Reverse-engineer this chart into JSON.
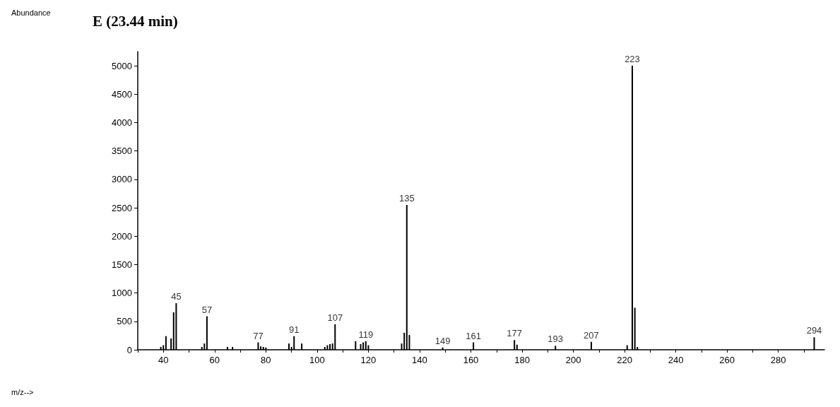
{
  "chart_data": {
    "type": "bar",
    "title": "E (23.44 min)",
    "annotations": [
      "Abundance",
      "m/z-->",
      {
        "text": "45",
        "x": 45,
        "y": 820
      },
      {
        "text": "57",
        "x": 57,
        "y": 590
      },
      {
        "text": "77",
        "x": 77,
        "y": 130
      },
      {
        "text": "91",
        "x": 91,
        "y": 240
      },
      {
        "text": "107",
        "x": 107,
        "y": 450
      },
      {
        "text": "119",
        "x": 119,
        "y": 150
      },
      {
        "text": "135",
        "x": 135,
        "y": 2550
      },
      {
        "text": "149",
        "x": 149,
        "y": 40
      },
      {
        "text": "161",
        "x": 161,
        "y": 130
      },
      {
        "text": "177",
        "x": 177,
        "y": 170
      },
      {
        "text": "193",
        "x": 193,
        "y": 70
      },
      {
        "text": "207",
        "x": 207,
        "y": 140
      },
      {
        "text": "223",
        "x": 223,
        "y": 5000
      },
      {
        "text": "294",
        "x": 294,
        "y": 220
      }
    ],
    "x": [
      39,
      40,
      41,
      43,
      44,
      45,
      55,
      56,
      57,
      65,
      67,
      77,
      78,
      79,
      80,
      89,
      90,
      91,
      94,
      103,
      104,
      105,
      106,
      107,
      115,
      117,
      118,
      119,
      120,
      133,
      134,
      135,
      136,
      149,
      161,
      177,
      178,
      193,
      207,
      221,
      223,
      224,
      225,
      294
    ],
    "values": [
      50,
      80,
      240,
      200,
      660,
      820,
      50,
      110,
      590,
      50,
      50,
      130,
      60,
      50,
      40,
      110,
      50,
      240,
      110,
      50,
      80,
      100,
      110,
      450,
      150,
      100,
      130,
      150,
      80,
      110,
      300,
      2550,
      260,
      40,
      130,
      170,
      90,
      70,
      140,
      80,
      5000,
      740,
      50,
      220
    ],
    "color": "#000000",
    "xlim": [
      30,
      298
    ],
    "xticks": [
      {
        "value": 30,
        "label": null
      },
      40,
      {
        "value": 50,
        "label": null
      },
      60,
      {
        "value": 70,
        "label": null
      },
      80,
      {
        "value": 90,
        "label": null
      },
      100,
      {
        "value": 110,
        "label": null
      },
      120,
      {
        "value": 130,
        "label": null
      },
      140,
      {
        "value": 150,
        "label": null
      },
      160,
      {
        "value": 170,
        "label": null
      },
      180,
      {
        "value": 190,
        "label": null
      },
      200,
      {
        "value": 210,
        "label": null
      },
      220,
      {
        "value": 230,
        "label": null
      },
      240,
      {
        "value": 250,
        "label": null
      },
      260,
      {
        "value": 270,
        "label": null
      },
      280,
      {
        "value": 290,
        "label": null
      }
    ],
    "ylim": [
      0,
      5250
    ],
    "yticks": [
      0,
      500,
      1000,
      1500,
      2000,
      2500,
      3000,
      3500,
      4000,
      4500,
      5000
    ],
    "grid": false
  }
}
